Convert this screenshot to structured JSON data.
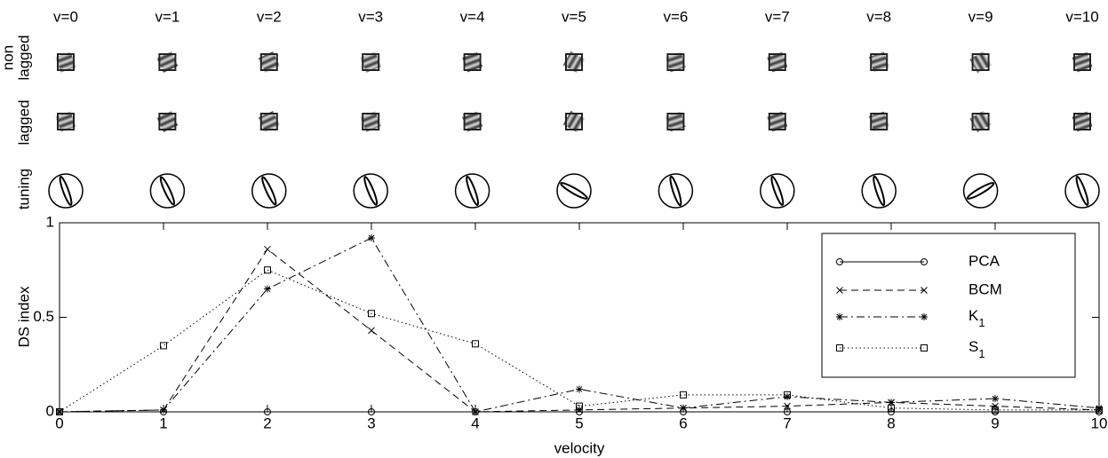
{
  "panels": {
    "columns": [
      "v=0",
      "v=1",
      "v=2",
      "v=3",
      "v=4",
      "v=5",
      "v=6",
      "v=7",
      "v=8",
      "v=9",
      "v=10"
    ],
    "row_labels": [
      [
        "non",
        "lagged"
      ],
      [
        "lagged"
      ],
      [
        "tuning"
      ]
    ]
  },
  "chart_data": {
    "type": "line",
    "x": [
      0,
      1,
      2,
      3,
      4,
      5,
      6,
      7,
      8,
      9,
      10
    ],
    "xlabel": "velocity",
    "ylabel": "DS index",
    "xlim": [
      0,
      10
    ],
    "xticks": [
      0,
      1,
      2,
      3,
      4,
      5,
      6,
      7,
      8,
      9,
      10
    ],
    "ylim": [
      0,
      1
    ],
    "yticks": [
      0,
      0.5,
      1
    ],
    "grid": false,
    "legend": "upper right",
    "series": [
      {
        "name": "PCA",
        "color": "#000000",
        "linestyle": "solid",
        "marker": "o",
        "values": [
          0,
          0,
          0,
          0,
          0,
          0,
          0,
          0,
          0,
          0,
          0
        ]
      },
      {
        "name": "BCM",
        "color": "#000000",
        "linestyle": "dashed",
        "marker": "x",
        "values": [
          0,
          0.01,
          0.86,
          0.43,
          0,
          0.01,
          0.02,
          0.03,
          0.05,
          0.03,
          0.01
        ]
      },
      {
        "name": "K1",
        "color": "#000000",
        "linestyle": "dashdot",
        "marker": "*",
        "values": [
          0,
          0.01,
          0.65,
          0.92,
          0,
          0.12,
          0.02,
          0.08,
          0.05,
          0.07,
          0.02
        ]
      },
      {
        "name": "S1",
        "color": "#000000",
        "linestyle": "dotted",
        "marker": "s",
        "values": [
          0,
          0.35,
          0.75,
          0.52,
          0.36,
          0.03,
          0.09,
          0.09,
          0.02,
          0.01,
          0.01
        ]
      }
    ]
  }
}
